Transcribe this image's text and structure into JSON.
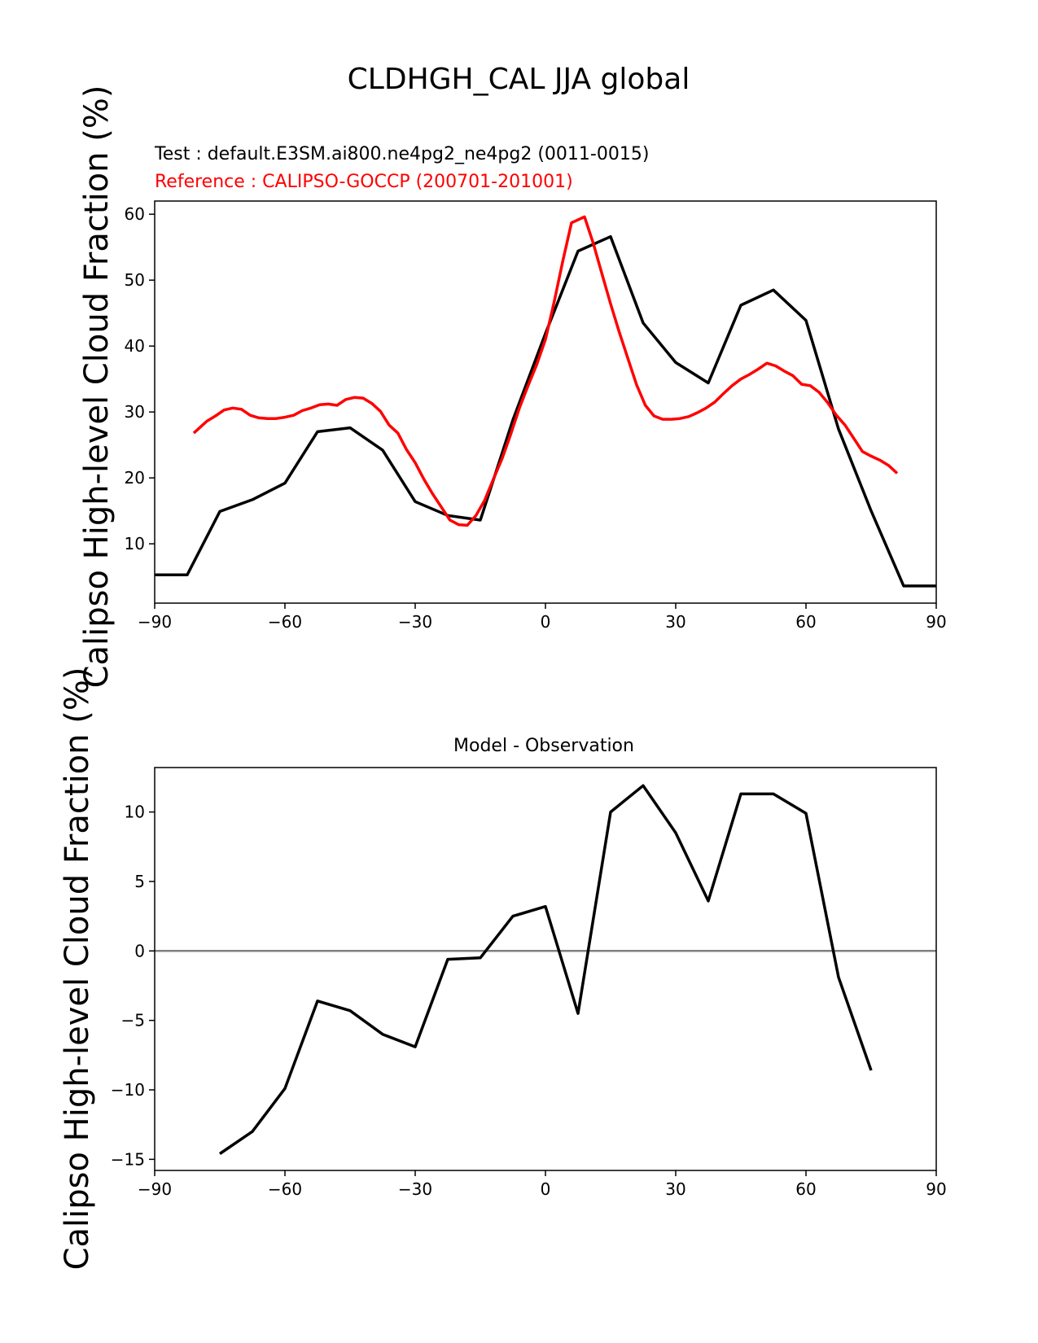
{
  "chart_data": [
    {
      "type": "line",
      "title": "CLDHGH_CAL JJA global",
      "test_label": "Test : default.E3SM.ai800.ne4pg2_ne4pg2 (0011-0015)",
      "reference_label": "Reference : CALIPSO-GOCCP (200701-201001)",
      "ylabel": "Calipso High-level Cloud Fraction (%)",
      "xlim": [
        -90,
        90
      ],
      "ylim": [
        1,
        62
      ],
      "xticks": [
        -90,
        -60,
        -30,
        0,
        30,
        60,
        90
      ],
      "xtick_labels": [
        "−90",
        "−60",
        "−30",
        "0",
        "30",
        "60",
        "90"
      ],
      "yticks": [
        10,
        20,
        30,
        40,
        50,
        60
      ],
      "ytick_labels": [
        "10",
        "20",
        "30",
        "40",
        "50",
        "60"
      ],
      "series": [
        {
          "color": "#000000",
          "x": [
            -90,
            -82.5,
            -75,
            -67.5,
            -60,
            -52.5,
            -45,
            -37.5,
            -30,
            -22.5,
            -15,
            -7.5,
            0,
            7.5,
            15,
            22.5,
            30,
            37.5,
            45,
            52.5,
            60,
            67.5,
            75,
            82.5,
            90
          ],
          "y": [
            5.3,
            5.3,
            14.9,
            16.7,
            19.2,
            27.0,
            27.6,
            24.2,
            16.4,
            14.3,
            13.6,
            28.8,
            41.9,
            54.4,
            56.6,
            43.5,
            37.5,
            34.4,
            46.2,
            48.5,
            43.9,
            27.4,
            15.0,
            3.6,
            3.6
          ]
        },
        {
          "color": "#ff0000",
          "x": [
            -81,
            -78,
            -76,
            -74,
            -72,
            -70,
            -68,
            -66,
            -64,
            -62,
            -60,
            -58,
            -56,
            -54,
            -52,
            -50,
            -48,
            -46,
            -44,
            -42,
            -40,
            -38,
            -36,
            -34,
            -32,
            -30,
            -28,
            -26,
            -24,
            -22,
            -20,
            -18,
            -16,
            -14,
            -12,
            -10,
            -8,
            -6,
            -4,
            -2,
            0,
            2,
            4,
            6,
            7,
            9,
            11,
            13,
            15,
            17,
            19,
            21,
            23,
            25,
            27,
            29,
            31,
            33,
            35,
            37,
            39,
            41,
            43,
            45,
            47,
            49,
            51,
            53,
            55,
            57,
            59,
            61,
            63,
            65,
            67,
            69,
            71,
            73,
            75,
            77,
            79,
            81
          ],
          "y": [
            26.8,
            28.6,
            29.4,
            30.3,
            30.6,
            30.4,
            29.5,
            29.1,
            29.0,
            29.0,
            29.2,
            29.5,
            30.2,
            30.6,
            31.1,
            31.2,
            31.0,
            31.9,
            32.2,
            32.1,
            31.3,
            30.1,
            28.0,
            26.8,
            24.3,
            22.3,
            19.8,
            17.6,
            15.6,
            13.6,
            12.9,
            12.8,
            14.3,
            16.6,
            19.8,
            22.9,
            26.6,
            30.6,
            34.0,
            37.2,
            41.0,
            46.7,
            52.9,
            58.7,
            59.0,
            59.6,
            55.6,
            51.0,
            46.4,
            42.1,
            38.1,
            34.1,
            31.0,
            29.4,
            28.9,
            28.9,
            29.0,
            29.3,
            29.9,
            30.6,
            31.5,
            32.8,
            34.0,
            35.0,
            35.7,
            36.5,
            37.4,
            37.0,
            36.2,
            35.5,
            34.2,
            34.0,
            33.0,
            31.4,
            29.5,
            28.0,
            26.0,
            24.0,
            23.3,
            22.7,
            21.9,
            20.7
          ]
        }
      ]
    },
    {
      "type": "line",
      "title": "Model - Observation",
      "ylabel": "Calipso High-level Cloud Fraction (%)",
      "xlim": [
        -90,
        90
      ],
      "ylim": [
        -15.8,
        13.2
      ],
      "xticks": [
        -90,
        -60,
        -30,
        0,
        30,
        60,
        90
      ],
      "xtick_labels": [
        "−90",
        "−60",
        "−30",
        "0",
        "30",
        "60",
        "90"
      ],
      "yticks": [
        -15,
        -10,
        -5,
        0,
        5,
        10
      ],
      "ytick_labels": [
        "−15",
        "−10",
        "−5",
        "0",
        "5",
        "10"
      ],
      "reference_line": {
        "y": 0,
        "color": "#808080"
      },
      "series": [
        {
          "color": "#000000",
          "x": [
            -75,
            -67.5,
            -60,
            -52.5,
            -45,
            -37.5,
            -30,
            -22.5,
            -15,
            -7.5,
            0,
            7.5,
            15,
            22.5,
            30,
            37.5,
            45,
            52.5,
            60,
            67.5,
            75
          ],
          "y": [
            -14.6,
            -13.0,
            -9.9,
            -3.6,
            -4.3,
            -6.0,
            -6.9,
            -0.6,
            -0.5,
            2.5,
            3.2,
            -4.5,
            10.0,
            11.9,
            8.5,
            3.6,
            11.3,
            11.3,
            9.9,
            -1.9,
            -8.6
          ]
        }
      ]
    }
  ]
}
